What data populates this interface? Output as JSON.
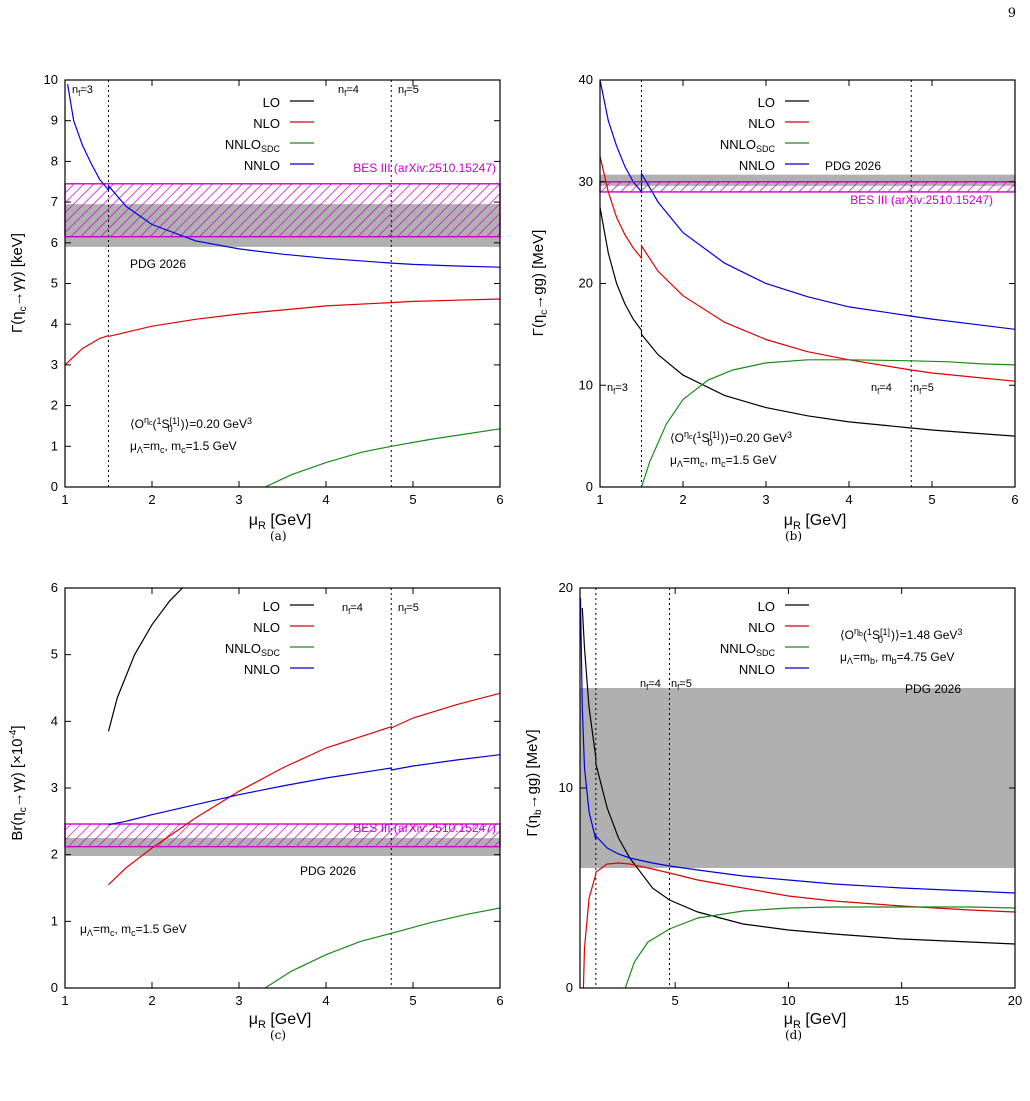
{
  "page_number": "9",
  "chart_data": [
    {
      "id": "a",
      "type": "line",
      "caption": "(a)",
      "xlabel": "μ_R [GeV]",
      "ylabel": "Γ(η_c→γγ) [keV]",
      "xlim": [
        1,
        6
      ],
      "ylim": [
        0,
        10
      ],
      "xticks": [
        1,
        2,
        3,
        4,
        5,
        6
      ],
      "yticks": [
        0,
        1,
        2,
        3,
        4,
        5,
        6,
        7,
        8,
        9,
        10
      ],
      "vlines": [
        1.5,
        4.75
      ],
      "vline_labels": [
        "nf=3",
        "nf=4",
        "nf=5"
      ],
      "legend": {
        "position": "top-center",
        "entries": [
          "LO",
          "NLO",
          "NNLO_SDC",
          "NNLO"
        ]
      },
      "series": [
        {
          "name": "LO",
          "color": "#000000",
          "x": [],
          "y": []
        },
        {
          "name": "NLO",
          "color": "#dd0000",
          "x": [
            1.0,
            1.2,
            1.4,
            1.5,
            1.5,
            2,
            2.5,
            3,
            3.5,
            4,
            4.75,
            4.75,
            5,
            5.5,
            6
          ],
          "y": [
            3.0,
            3.4,
            3.65,
            3.72,
            3.7,
            3.95,
            4.12,
            4.25,
            4.35,
            4.45,
            4.53,
            4.53,
            4.56,
            4.59,
            4.62
          ]
        },
        {
          "name": "NNLO_SDC",
          "color": "#1a8a1a",
          "x": [
            3.3,
            3.6,
            4.0,
            4.4,
            4.75,
            4.75,
            5.2,
            5.6,
            6
          ],
          "y": [
            0,
            0.3,
            0.6,
            0.85,
            1.0,
            1.0,
            1.17,
            1.3,
            1.43
          ]
        },
        {
          "name": "NNLO",
          "color": "#0000dd",
          "x": [
            1.03,
            1.1,
            1.2,
            1.3,
            1.4,
            1.5,
            1.5,
            1.7,
            2,
            2.5,
            3,
            3.5,
            4,
            4.75,
            4.75,
            5,
            5.5,
            6
          ],
          "y": [
            9.9,
            9.0,
            8.4,
            7.95,
            7.55,
            7.3,
            7.4,
            6.9,
            6.45,
            6.05,
            5.85,
            5.72,
            5.62,
            5.5,
            5.5,
            5.47,
            5.43,
            5.4
          ]
        }
      ],
      "bands": [
        {
          "name": "PDG 2026",
          "style": "gray",
          "ymin": 5.9,
          "ymax": 6.95
        },
        {
          "name": "BES III (arXiv:2510.15247)",
          "style": "hatch",
          "ymin": 6.15,
          "ymax": 7.45
        }
      ],
      "annotations": [
        "⟨O^ηc(1S0[1])⟩=0.20 GeV³",
        "μΛ=mc, mc=1.5 GeV"
      ]
    },
    {
      "id": "b",
      "type": "line",
      "caption": "(b)",
      "xlabel": "μ_R [GeV]",
      "ylabel": "Γ(η_c→gg) [MeV]",
      "xlim": [
        1,
        6
      ],
      "ylim": [
        0,
        40
      ],
      "xticks": [
        1,
        2,
        3,
        4,
        5,
        6
      ],
      "yticks": [
        0,
        10,
        20,
        30,
        40
      ],
      "vlines": [
        1.5,
        4.75
      ],
      "vline_labels": [
        "nf=3",
        "nf=4",
        "nf=5"
      ],
      "legend": {
        "position": "top-center",
        "entries": [
          "LO",
          "NLO",
          "NNLO_SDC",
          "NNLO"
        ]
      },
      "series": [
        {
          "name": "LO",
          "color": "#000000",
          "x": [
            1.0,
            1.1,
            1.2,
            1.3,
            1.4,
            1.5,
            1.5,
            1.7,
            2,
            2.5,
            3,
            3.5,
            4,
            4.75,
            4.75,
            5,
            5.5,
            6
          ],
          "y": [
            27.5,
            23.0,
            20.0,
            18.0,
            16.5,
            15.4,
            15.0,
            13.0,
            11.0,
            9.0,
            7.8,
            7.0,
            6.4,
            5.8,
            5.8,
            5.6,
            5.3,
            5.0
          ]
        },
        {
          "name": "NLO",
          "color": "#dd0000",
          "x": [
            1.0,
            1.1,
            1.2,
            1.3,
            1.4,
            1.5,
            1.5,
            1.7,
            2,
            2.5,
            3,
            3.5,
            4,
            4.75,
            4.75,
            5,
            5.5,
            6
          ],
          "y": [
            32.5,
            29.0,
            26.5,
            24.8,
            23.5,
            22.5,
            23.7,
            21.2,
            18.8,
            16.2,
            14.5,
            13.3,
            12.5,
            11.5,
            11.5,
            11.2,
            10.8,
            10.4
          ]
        },
        {
          "name": "NNLO_SDC",
          "color": "#1a8a1a",
          "x": [
            1.5,
            1.6,
            1.8,
            2.0,
            2.3,
            2.6,
            3.0,
            3.5,
            4.0,
            4.75,
            4.75,
            5.2,
            5.6,
            6
          ],
          "y": [
            0,
            2.5,
            6.2,
            8.6,
            10.5,
            11.5,
            12.2,
            12.5,
            12.5,
            12.4,
            12.4,
            12.3,
            12.1,
            12.0
          ]
        },
        {
          "name": "NNLO",
          "color": "#0000dd",
          "x": [
            1.0,
            1.1,
            1.2,
            1.3,
            1.4,
            1.5,
            1.5,
            1.7,
            2,
            2.5,
            3,
            3.5,
            4,
            4.75,
            4.75,
            5,
            5.5,
            6
          ],
          "y": [
            40.0,
            36.0,
            33.5,
            31.5,
            30.0,
            29.0,
            30.8,
            28.0,
            25.0,
            22.0,
            20.0,
            18.7,
            17.7,
            16.8,
            16.8,
            16.5,
            16.0,
            15.5
          ]
        }
      ],
      "bands": [
        {
          "name": "PDG 2026",
          "style": "gray",
          "ymin": 29.6,
          "ymax": 30.7
        },
        {
          "name": "BES III (arXiv:2510.15247)",
          "style": "hatch",
          "ymin": 29.0,
          "ymax": 30.0
        }
      ],
      "annotations": [
        "⟨O^ηc(1S0[1])⟩=0.20 GeV³",
        "μΛ=mc, mc=1.5 GeV"
      ]
    },
    {
      "id": "c",
      "type": "line",
      "caption": "(c)",
      "xlabel": "μ_R [GeV]",
      "ylabel": "Br(η_c→γγ) [×10⁻⁴]",
      "xlim": [
        1,
        6
      ],
      "ylim": [
        0,
        6
      ],
      "xticks": [
        1,
        2,
        3,
        4,
        5,
        6
      ],
      "yticks": [
        0,
        1,
        2,
        3,
        4,
        5,
        6
      ],
      "vlines": [
        4.75
      ],
      "vline_labels": [
        "nf=4",
        "nf=5"
      ],
      "legend": {
        "position": "top-center",
        "entries": [
          "LO",
          "NLO",
          "NNLO_SDC",
          "NNLO"
        ]
      },
      "series": [
        {
          "name": "LO",
          "color": "#000000",
          "x": [
            1.5,
            1.6,
            1.8,
            2.0,
            2.2,
            2.35
          ],
          "y": [
            3.85,
            4.35,
            5.0,
            5.45,
            5.8,
            6.0
          ]
        },
        {
          "name": "NLO",
          "color": "#dd0000",
          "x": [
            1.5,
            1.7,
            2.0,
            2.5,
            3.0,
            3.5,
            4.0,
            4.75,
            4.75,
            5.0,
            5.5,
            6.0
          ],
          "y": [
            1.55,
            1.8,
            2.1,
            2.55,
            2.95,
            3.3,
            3.6,
            3.92,
            3.9,
            4.05,
            4.25,
            4.42
          ]
        },
        {
          "name": "NNLO_SDC",
          "color": "#1a8a1a",
          "x": [
            3.3,
            3.6,
            4.0,
            4.4,
            4.75,
            4.75,
            5.2,
            5.6,
            6
          ],
          "y": [
            0,
            0.25,
            0.5,
            0.7,
            0.82,
            0.82,
            0.98,
            1.1,
            1.2
          ]
        },
        {
          "name": "NNLO",
          "color": "#0000dd",
          "x": [
            1.5,
            1.7,
            2.0,
            2.5,
            3.0,
            3.5,
            4.0,
            4.75,
            4.75,
            5.0,
            5.5,
            6.0
          ],
          "y": [
            2.45,
            2.5,
            2.6,
            2.75,
            2.9,
            3.03,
            3.15,
            3.3,
            3.27,
            3.33,
            3.42,
            3.5
          ]
        }
      ],
      "bands": [
        {
          "name": "PDG 2026",
          "style": "gray",
          "ymin": 1.98,
          "ymax": 2.25
        },
        {
          "name": "BES III (arXiv:2510.15247)",
          "style": "hatch",
          "ymin": 2.12,
          "ymax": 2.46
        }
      ],
      "annotations": [
        "μΛ=mc, mc=1.5 GeV"
      ]
    },
    {
      "id": "d",
      "type": "line",
      "caption": "(d)",
      "xlabel": "μ_R [GeV]",
      "ylabel": "Γ(η_b→gg) [MeV]",
      "xlim": [
        0.8,
        20
      ],
      "ylim": [
        0,
        20
      ],
      "xticks": [
        5,
        10,
        15,
        20
      ],
      "yticks": [
        0,
        10,
        20
      ],
      "vlines": [
        1.5,
        4.75
      ],
      "vline_labels": [
        "nf=4",
        "nf=5"
      ],
      "legend": {
        "position": "top-center",
        "entries": [
          "LO",
          "NLO",
          "NNLO_SDC",
          "NNLO"
        ]
      },
      "series": [
        {
          "name": "LO",
          "color": "#000000",
          "x": [
            0.9,
            1.0,
            1.2,
            1.5,
            1.5,
            2.0,
            2.5,
            3.0,
            4.0,
            4.75,
            4.75,
            6,
            8,
            10,
            12,
            15,
            18,
            20
          ],
          "y": [
            19.0,
            17.0,
            14.0,
            11.5,
            11.2,
            9.0,
            7.5,
            6.5,
            5.0,
            4.4,
            4.4,
            3.8,
            3.2,
            2.9,
            2.7,
            2.45,
            2.3,
            2.2
          ]
        },
        {
          "name": "NLO",
          "color": "#dd0000",
          "x": [
            0.95,
            1.0,
            1.2,
            1.5,
            1.5,
            2.0,
            2.5,
            3.0,
            4.0,
            4.75,
            4.75,
            6,
            8,
            10,
            12,
            15,
            18,
            20
          ],
          "y": [
            0,
            2.0,
            4.5,
            5.7,
            5.8,
            6.2,
            6.25,
            6.2,
            5.95,
            5.75,
            5.75,
            5.4,
            5.0,
            4.6,
            4.35,
            4.1,
            3.9,
            3.8
          ]
        },
        {
          "name": "NNLO_SDC",
          "color": "#1a8a1a",
          "x": [
            2.8,
            3.2,
            3.8,
            4.75,
            4.75,
            6,
            8,
            10,
            12,
            15,
            18,
            20
          ],
          "y": [
            0,
            1.3,
            2.3,
            2.95,
            2.95,
            3.5,
            3.85,
            4.0,
            4.05,
            4.05,
            4.05,
            4.0
          ]
        },
        {
          "name": "NNLO",
          "color": "#0000dd",
          "x": [
            0.82,
            0.9,
            1.0,
            1.2,
            1.5,
            1.5,
            2.0,
            2.5,
            3.0,
            4.0,
            4.75,
            4.75,
            6,
            8,
            10,
            12,
            15,
            18,
            20
          ],
          "y": [
            19.5,
            14.0,
            11.0,
            8.8,
            7.4,
            7.6,
            7.0,
            6.7,
            6.5,
            6.25,
            6.1,
            6.1,
            5.9,
            5.6,
            5.4,
            5.2,
            5.0,
            4.85,
            4.75
          ]
        }
      ],
      "bands": [
        {
          "name": "PDG 2026",
          "style": "gray",
          "ymin": 6.0,
          "ymax": 15.0
        }
      ],
      "annotations": [
        "⟨O^ηb(1S0[1])⟩=1.48 GeV³",
        "μΛ=mb, mb=4.75 GeV"
      ]
    }
  ]
}
